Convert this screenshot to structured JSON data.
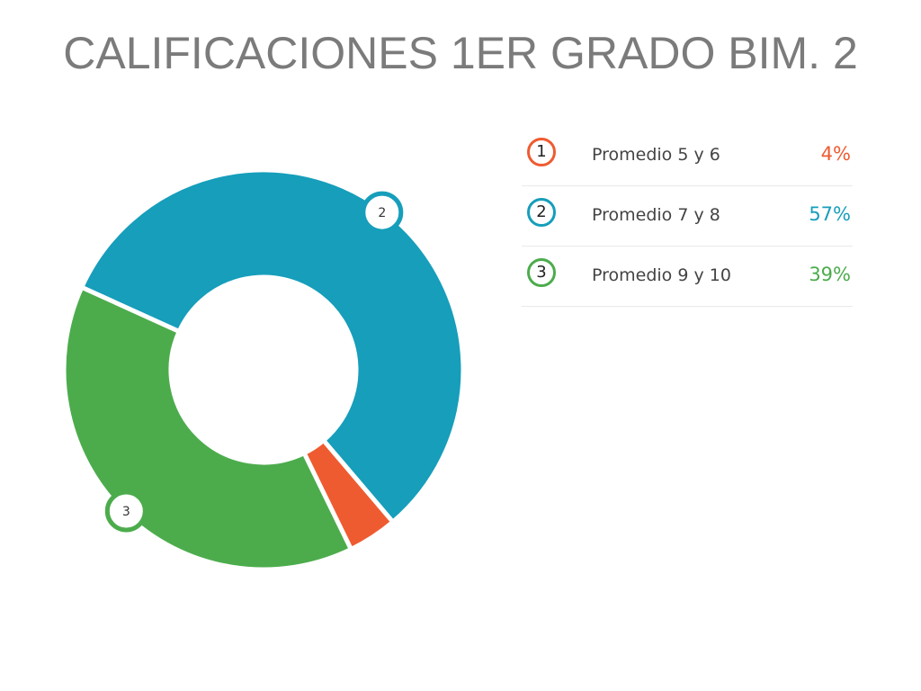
{
  "title": "CALIFICACIONES 1ER GRADO BIM. 2",
  "chart_data": {
    "type": "pie",
    "donut": true,
    "title": "CALIFICACIONES 1ER GRADO BIM. 2",
    "slices": [
      {
        "index": "1",
        "label": "Promedio 5 y 6",
        "value": 4,
        "value_label": "4%",
        "color": "#ef5b30",
        "marker_on_chart": false
      },
      {
        "index": "2",
        "label": "Promedio 7 y 8",
        "value": 57,
        "value_label": "57%",
        "color": "#169ebb",
        "marker_on_chart": true
      },
      {
        "index": "3",
        "label": "Promedio 9 y 10",
        "value": 39,
        "value_label": "39%",
        "color": "#4cac4c",
        "marker_on_chart": true
      }
    ],
    "legend_position": "right"
  }
}
